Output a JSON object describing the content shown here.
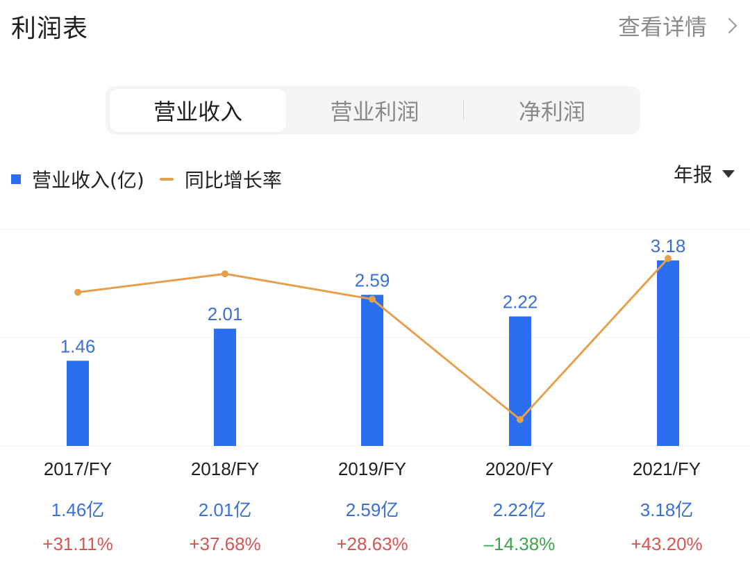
{
  "header": {
    "title": "利润表",
    "detail_link": "查看详情"
  },
  "tabs": [
    {
      "label": "营业收入",
      "active": true
    },
    {
      "label": "营业利润",
      "active": false
    },
    {
      "label": "净利润",
      "active": false
    }
  ],
  "legend": {
    "bar_label": "营业收入(亿)",
    "line_label": "同比增长率"
  },
  "period_select": {
    "value": "年报"
  },
  "colors": {
    "bar": "#2b6ef0",
    "line": "#e6a04c",
    "positive": "#d9534f",
    "negative": "#3aa64c",
    "value_text": "#3a6fd8"
  },
  "chart_data": {
    "type": "bar",
    "categories": [
      "2017/FY",
      "2018/FY",
      "2019/FY",
      "2020/FY",
      "2021/FY"
    ],
    "series": [
      {
        "name": "营业收入(亿)",
        "type": "bar",
        "values": [
          1.46,
          2.01,
          2.59,
          2.22,
          3.18
        ],
        "value_labels": [
          "1.46",
          "2.01",
          "2.59",
          "2.22",
          "3.18"
        ]
      },
      {
        "name": "同比增长率",
        "type": "line",
        "values": [
          31.11,
          37.68,
          28.63,
          -14.38,
          43.2
        ]
      }
    ],
    "grid": true,
    "legend_position": "top-left"
  },
  "table": {
    "years": [
      "2017/FY",
      "2018/FY",
      "2019/FY",
      "2020/FY",
      "2021/FY"
    ],
    "revenue": [
      "1.46亿",
      "2.01亿",
      "2.59亿",
      "2.22亿",
      "3.18亿"
    ],
    "growth": [
      "+31.11%",
      "+37.68%",
      "+28.63%",
      "–14.38%",
      "+43.20%"
    ]
  }
}
